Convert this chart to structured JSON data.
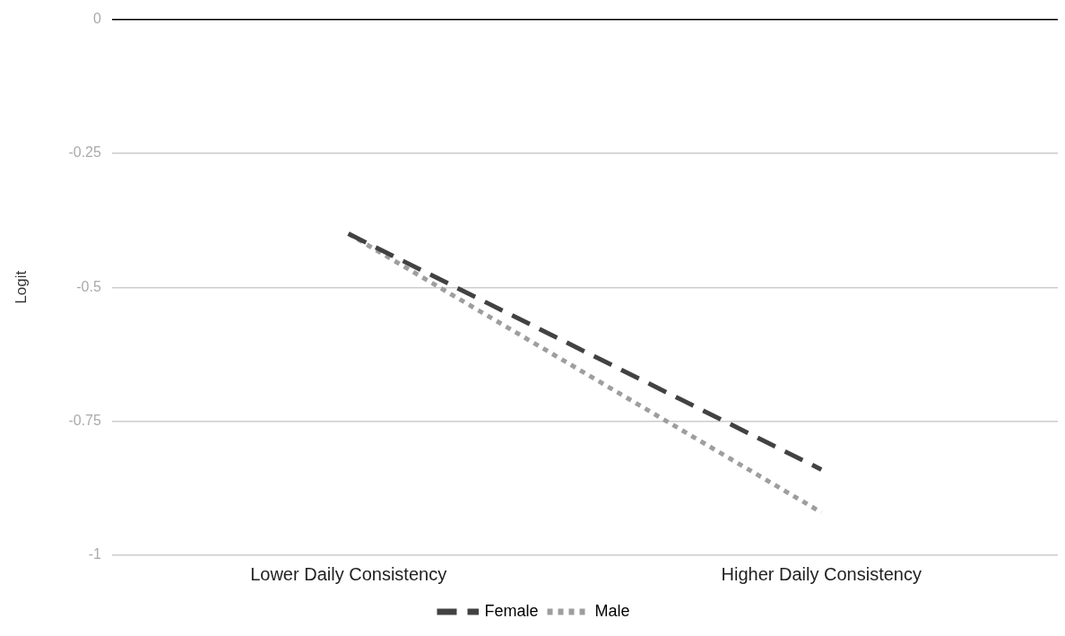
{
  "chart_data": {
    "type": "line",
    "ylabel": "Logit",
    "categories": [
      "Lower Daily Consistency",
      "Higher Daily Consistency"
    ],
    "series": [
      {
        "name": "Female",
        "color": "#424242",
        "line_style": "dashed",
        "values": [
          -0.4,
          -0.84
        ]
      },
      {
        "name": "Male",
        "color": "#9e9e9e",
        "line_style": "dotted",
        "values": [
          -0.4,
          -0.92
        ]
      }
    ],
    "ylim": [
      -1,
      0
    ],
    "yticks": [
      {
        "value": -1,
        "label": "-1"
      },
      {
        "value": -0.75,
        "label": "-0.75"
      },
      {
        "value": -0.5,
        "label": "-0.5"
      },
      {
        "value": -0.25,
        "label": "-0.25"
      },
      {
        "value": 0,
        "label": "0"
      }
    ],
    "grid": "y",
    "legend": "bottom",
    "marker": "none"
  }
}
